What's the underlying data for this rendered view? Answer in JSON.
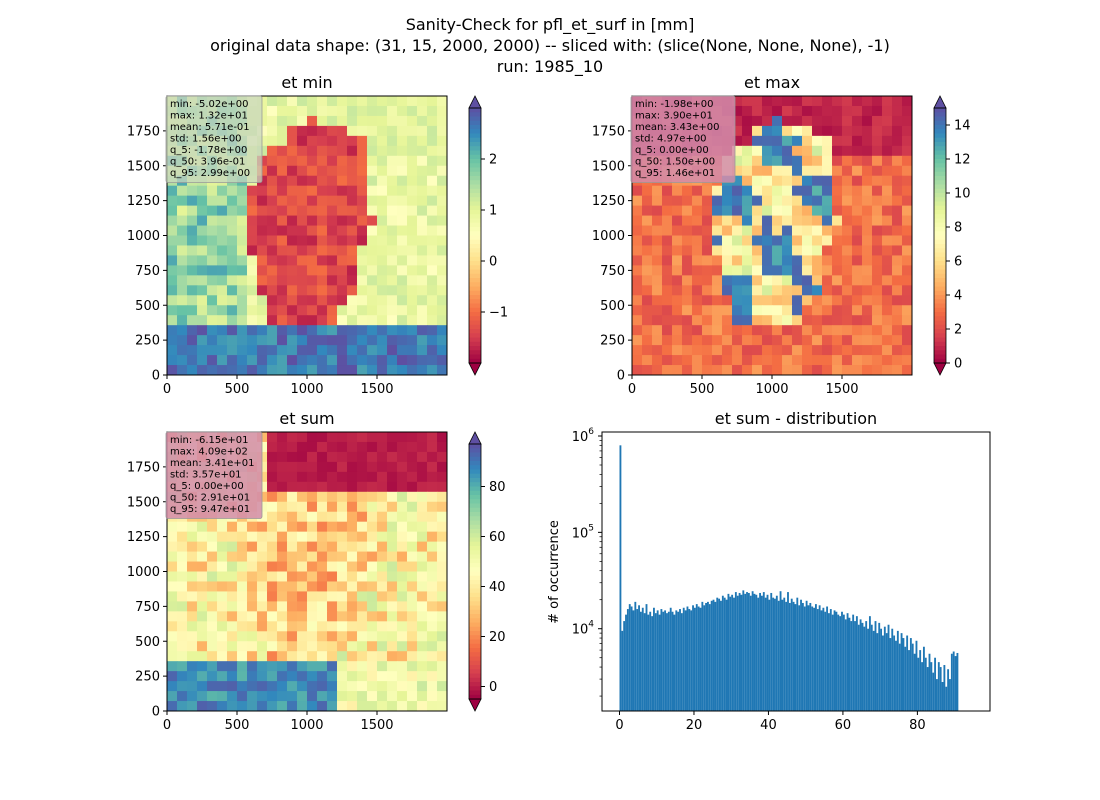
{
  "suptitle": {
    "line1": "Sanity-Check for pfl_et_surf in [mm]",
    "line2": "original data shape: (31, 15, 2000, 2000) -- sliced with: (slice(None, None, None), -1)",
    "line3": "run: 1985_10"
  },
  "colormap": [
    "#9e0142",
    "#d53e4f",
    "#f46d43",
    "#fdae61",
    "#fee08b",
    "#ffffbf",
    "#e6f598",
    "#abdda4",
    "#66c2a5",
    "#3288bd",
    "#5e4fa2"
  ],
  "chart_data": [
    {
      "type": "heatmap",
      "title": "et min",
      "x_ticks": [
        "0",
        "500",
        "1000",
        "1500"
      ],
      "y_ticks": [
        "0",
        "250",
        "500",
        "750",
        "1000",
        "1250",
        "1500",
        "1750"
      ],
      "xlim": [
        0,
        2000
      ],
      "ylim": [
        0,
        2000
      ],
      "colorbar": {
        "vmin": -2.0,
        "vmax": 3.0,
        "ticks": [
          "−1",
          "0",
          "1",
          "2"
        ],
        "tick_values": [
          -1,
          0,
          1,
          2
        ],
        "extend": "both"
      },
      "stats": [
        "min: -5.02e+00",
        "max: 1.32e+01",
        "mean: 5.71e-01",
        "std: 1.56e+00",
        "q_5: -1.78e+00",
        "q_50: 3.96e-01",
        "q_95: 2.99e+00"
      ]
    },
    {
      "type": "heatmap",
      "title": "et max",
      "x_ticks": [
        "0",
        "500",
        "1000",
        "1500"
      ],
      "y_ticks": [
        "0",
        "250",
        "500",
        "750",
        "1000",
        "1250",
        "1500",
        "1750"
      ],
      "xlim": [
        0,
        2000
      ],
      "ylim": [
        0,
        2000
      ],
      "colorbar": {
        "vmin": 0,
        "vmax": 15,
        "ticks": [
          "0",
          "2",
          "4",
          "6",
          "8",
          "10",
          "12",
          "14"
        ],
        "tick_values": [
          0,
          2,
          4,
          6,
          8,
          10,
          12,
          14
        ],
        "extend": "both"
      },
      "stats": [
        "min: -1.98e+00",
        "max: 3.90e+01",
        "mean: 3.43e+00",
        "std: 4.97e+00",
        "q_5: 0.00e+00",
        "q_50: 1.50e+00",
        "q_95: 1.46e+01"
      ]
    },
    {
      "type": "heatmap",
      "title": "et sum",
      "x_ticks": [
        "0",
        "500",
        "1000",
        "1500"
      ],
      "y_ticks": [
        "0",
        "250",
        "500",
        "750",
        "1000",
        "1250",
        "1500",
        "1750"
      ],
      "xlim": [
        0,
        2000
      ],
      "ylim": [
        0,
        2000
      ],
      "colorbar": {
        "vmin": -5,
        "vmax": 97,
        "ticks": [
          "0",
          "20",
          "40",
          "60",
          "80"
        ],
        "tick_values": [
          0,
          20,
          40,
          60,
          80
        ],
        "extend": "both"
      },
      "stats": [
        "min: -6.15e+01",
        "max: 4.09e+02",
        "mean: 3.41e+01",
        "std: 3.57e+01",
        "q_5: 0.00e+00",
        "q_50: 2.91e+01",
        "q_95: 9.47e+01"
      ]
    },
    {
      "type": "bar",
      "title": "et sum - distribution",
      "ylabel": "# of occurrence",
      "xlabel": "",
      "yscale": "log",
      "xlim": [
        -4.7,
        99.5
      ],
      "ylim": [
        1400,
        1100000
      ],
      "x_ticks": [
        "0",
        "20",
        "40",
        "60",
        "80"
      ],
      "x_tick_values": [
        0,
        20,
        40,
        60,
        80
      ],
      "y_tick_labels": [
        {
          "base": "10",
          "exp": "4"
        },
        {
          "base": "10",
          "exp": "5"
        },
        {
          "base": "10",
          "exp": "6"
        }
      ],
      "y_tick_values": [
        10000,
        100000,
        1000000
      ],
      "color": "#1f77b4",
      "bin_start": 0,
      "bin_width": 0.5,
      "values": [
        800000,
        9500,
        12000,
        14000,
        16000,
        18000,
        17000,
        15500,
        19000,
        16000,
        17500,
        15000,
        16500,
        14500,
        18000,
        14000,
        15000,
        13500,
        16500,
        14500,
        15500,
        14000,
        16000,
        15000,
        15500,
        14500,
        15000,
        16500,
        15000,
        14000,
        15500,
        15000,
        16000,
        14500,
        16500,
        15500,
        17000,
        16000,
        15500,
        17500,
        16500,
        18000,
        17000,
        16500,
        19000,
        17500,
        18500,
        19000,
        18000,
        19500,
        20000,
        19000,
        21000,
        20500,
        19500,
        22000,
        21000,
        20000,
        23000,
        21500,
        22500,
        21000,
        24000,
        22000,
        23500,
        22500,
        25000,
        23000,
        24000,
        23500,
        22000,
        24500,
        23000,
        22500,
        21000,
        23500,
        22000,
        24000,
        21000,
        22500,
        20000,
        23500,
        21000,
        20500,
        22000,
        19500,
        24500,
        20000,
        21000,
        19000,
        24000,
        18500,
        20500,
        19000,
        18000,
        21000,
        17500,
        20000,
        18500,
        17000,
        19500,
        17500,
        18500,
        17000,
        16500,
        18000,
        16000,
        17500,
        15500,
        16500,
        15000,
        17000,
        14500,
        16000,
        14000,
        15500,
        15000,
        14000,
        13500,
        15000,
        14000,
        12500,
        14500,
        13000,
        12000,
        14000,
        12000,
        13500,
        11000,
        12500,
        11500,
        10500,
        12000,
        10000,
        13500,
        11000,
        9500,
        12000,
        9000,
        11500,
        10000,
        8500,
        10500,
        9000,
        11000,
        8000,
        10000,
        8500,
        7500,
        9500,
        7000,
        9000,
        8000,
        6500,
        8500,
        6000,
        8000,
        7000,
        5500,
        7500,
        5000,
        6000,
        4500,
        6500,
        5000,
        4000,
        5500,
        4500,
        3500,
        5000,
        3000,
        4500,
        4000,
        2800,
        4200,
        2500,
        3800,
        3000,
        5500,
        5800,
        5200,
        5600
      ]
    }
  ]
}
